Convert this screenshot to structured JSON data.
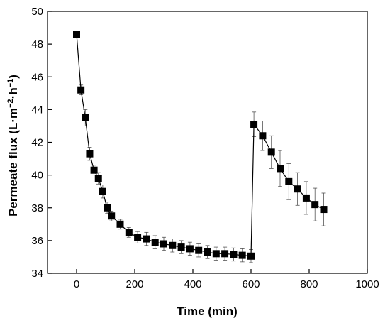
{
  "chart_data": {
    "type": "scatter",
    "title": "",
    "xlabel": "Time (min)",
    "ylabel_parts": [
      "Permeate flux (L·m",
      "−2",
      "·h",
      "−1",
      ")"
    ],
    "xlim": [
      -100,
      1000
    ],
    "ylim": [
      34,
      50
    ],
    "xticks": [
      0,
      200,
      400,
      600,
      800,
      1000
    ],
    "yticks": [
      34,
      36,
      38,
      40,
      42,
      44,
      46,
      48,
      50
    ],
    "marker_color": "#000000",
    "grid": false,
    "legend": "none",
    "series": [
      {
        "x": [
          0,
          15,
          30,
          45,
          60,
          75,
          90,
          105,
          120,
          150,
          180,
          210,
          240,
          270,
          300,
          330,
          360,
          390,
          420,
          450,
          480,
          510,
          540,
          570,
          600,
          610,
          640,
          670,
          700,
          730,
          760,
          790,
          820,
          850
        ],
        "y": [
          48.6,
          45.2,
          43.5,
          41.3,
          40.3,
          39.8,
          39.0,
          38.0,
          37.5,
          37.0,
          36.5,
          36.2,
          36.1,
          35.9,
          35.8,
          35.7,
          35.6,
          35.5,
          35.4,
          35.3,
          35.2,
          35.2,
          35.15,
          35.1,
          35.05,
          43.1,
          42.4,
          41.4,
          40.4,
          39.6,
          39.15,
          38.6,
          38.2,
          37.9
        ],
        "error": [
          0,
          0.3,
          0.5,
          0.4,
          0.3,
          0.35,
          0.4,
          0.35,
          0.3,
          0.3,
          0.3,
          0.35,
          0.4,
          0.4,
          0.4,
          0.4,
          0.4,
          0.4,
          0.4,
          0.4,
          0.4,
          0.4,
          0.4,
          0.4,
          0.4,
          0.75,
          0.9,
          1.0,
          1.1,
          1.1,
          1.0,
          1.0,
          1.0,
          1.0
        ]
      }
    ]
  }
}
